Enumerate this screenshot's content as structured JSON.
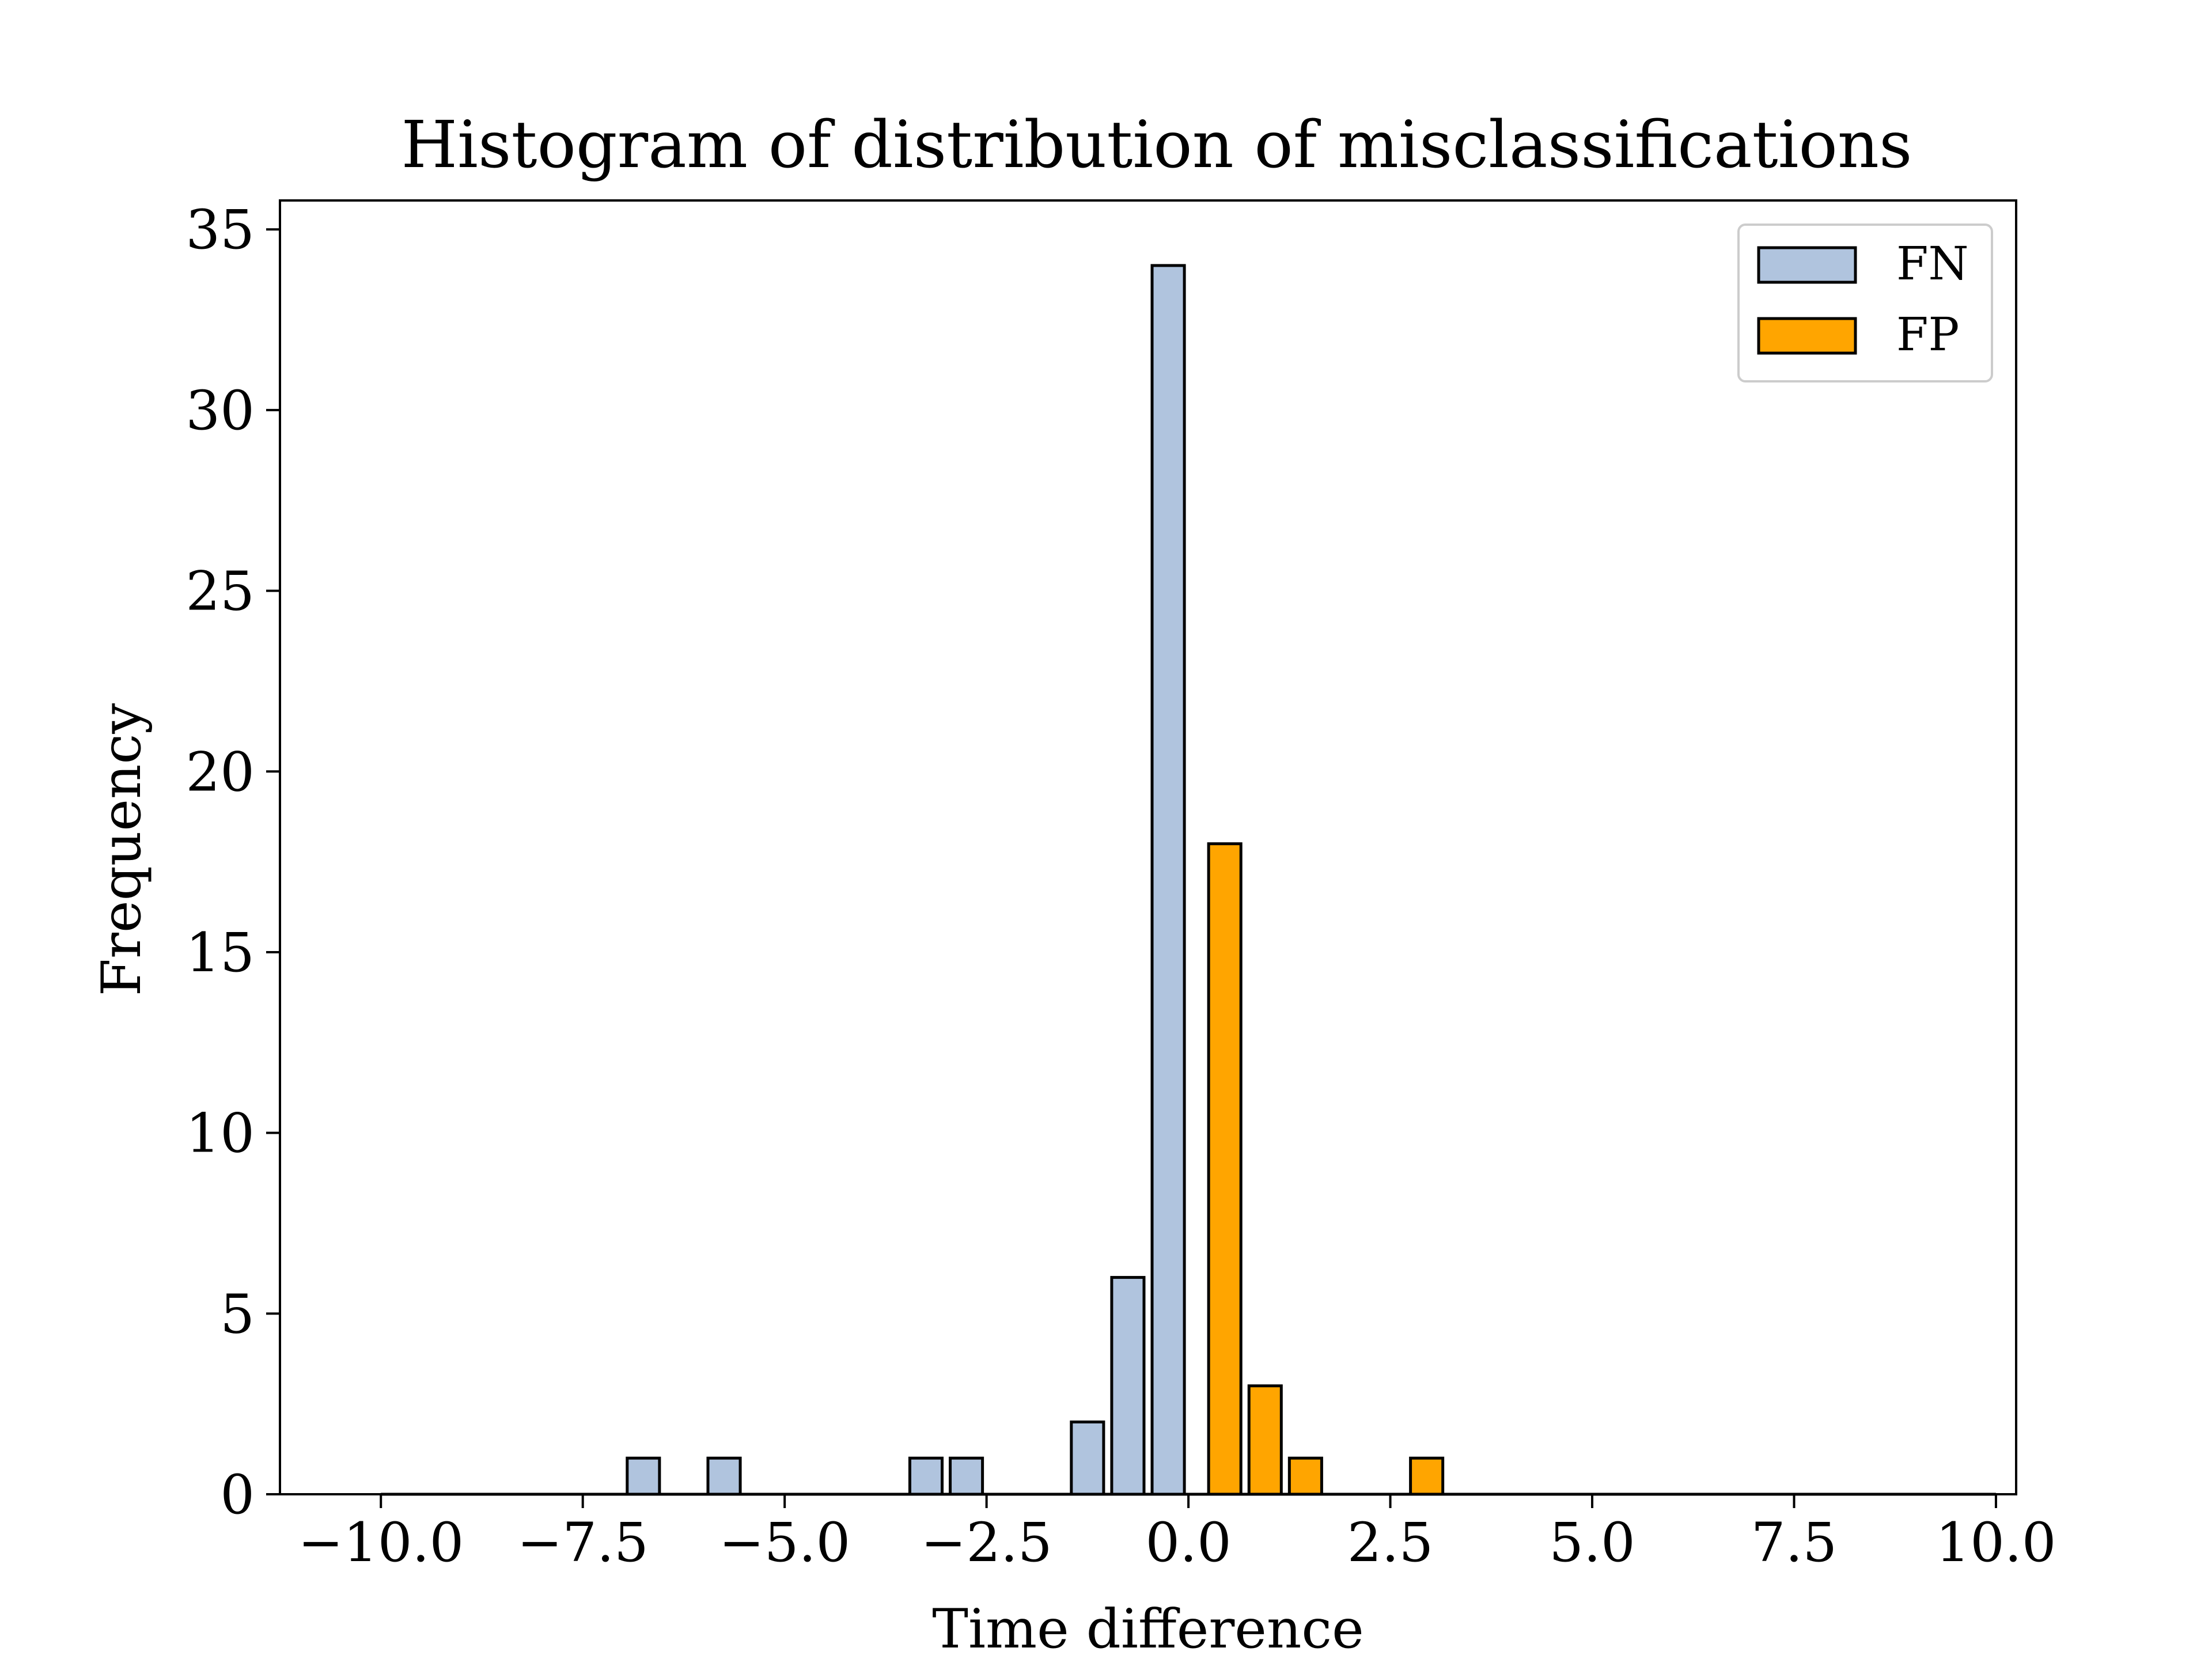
{
  "chart_data": {
    "type": "bar",
    "title": "Histogram of distribution of misclassifications",
    "xlabel": "Time difference",
    "ylabel": "Frequency",
    "xlim": [
      -11.25,
      10.25
    ],
    "ylim": [
      0,
      35.8
    ],
    "xticks": [
      -10.0,
      -7.5,
      -5.0,
      -2.5,
      0.0,
      2.5,
      5.0,
      7.5,
      10.0
    ],
    "xtick_labels": [
      "−10.0",
      "−7.5",
      "−5.0",
      "−2.5",
      "0.0",
      "2.5",
      "5.0",
      "7.5",
      "10.0"
    ],
    "yticks": [
      0,
      5,
      10,
      15,
      20,
      25,
      30,
      35
    ],
    "ytick_labels": [
      "0",
      "5",
      "10",
      "15",
      "20",
      "25",
      "30",
      "35"
    ],
    "grid": false,
    "legend_position": "top-right",
    "series": [
      {
        "name": "FN",
        "color": "#b0c4de",
        "bin_width": 0.5,
        "bin_range": [
          -10.0,
          0.0
        ],
        "bins": [
          {
            "x": -6.75,
            "value": 1
          },
          {
            "x": -5.75,
            "value": 1
          },
          {
            "x": -3.25,
            "value": 1
          },
          {
            "x": -2.75,
            "value": 1
          },
          {
            "x": -1.25,
            "value": 2
          },
          {
            "x": -0.75,
            "value": 6
          },
          {
            "x": -0.25,
            "value": 34
          }
        ]
      },
      {
        "name": "FP",
        "color": "#ffa500",
        "bin_width": 0.5,
        "bin_range": [
          0.0,
          10.0
        ],
        "bins": [
          {
            "x": 0.45,
            "value": 18
          },
          {
            "x": 0.95,
            "value": 3
          },
          {
            "x": 1.45,
            "value": 1
          },
          {
            "x": 2.95,
            "value": 1
          }
        ]
      }
    ]
  }
}
